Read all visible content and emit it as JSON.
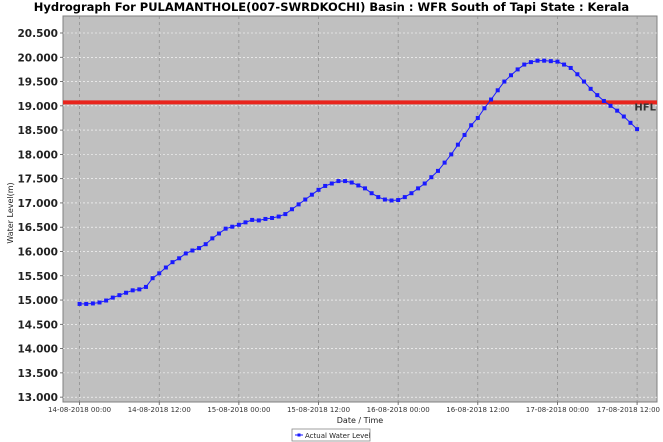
{
  "chart_data": {
    "type": "line",
    "title": "Hydrograph For PULAMANTHOLE(007-SWRDKOCHI) Basin : WFR South of Tapi State : Kerala",
    "xlabel": "Date / Time",
    "ylabel": "Water Level(m)",
    "ylim": [
      12.9,
      20.85
    ],
    "yticks": [
      "13.000",
      "13.500",
      "14.000",
      "14.500",
      "15.000",
      "15.500",
      "16.000",
      "16.500",
      "17.000",
      "17.500",
      "18.000",
      "18.500",
      "19.000",
      "19.500",
      "20.000",
      "20.500"
    ],
    "xticks": [
      "14-08-2018 00:00",
      "14-08-2018 12:00",
      "15-08-2018 00:00",
      "15-08-2018 12:00",
      "16-08-2018 00:00",
      "16-08-2018 12:00",
      "17-08-2018 00:00",
      "17-08-2018 12:00"
    ],
    "xlim_hours": [
      -2.5,
      87.0
    ],
    "grid": true,
    "legend_position": "bottom-center",
    "hfl": {
      "label": "HFL",
      "value": 19.07,
      "color": "#e8241c"
    },
    "series": [
      {
        "name": "Actual Water Level",
        "color": "#1a1aff",
        "x_hours": [
          0,
          1,
          2,
          3,
          4,
          5,
          6,
          7,
          8,
          9,
          10,
          11,
          12,
          13,
          14,
          15,
          16,
          17,
          18,
          19,
          20,
          21,
          22,
          23,
          24,
          25,
          26,
          27,
          28,
          29,
          30,
          31,
          32,
          33,
          34,
          35,
          36,
          37,
          38,
          39,
          40,
          41,
          42,
          43,
          44,
          45,
          46,
          47,
          48,
          49,
          50,
          51,
          52,
          53,
          54,
          55,
          56,
          57,
          58,
          59,
          60,
          61,
          62,
          63,
          64,
          65,
          66,
          67,
          68,
          69,
          70,
          71,
          72,
          73,
          74,
          75,
          76,
          77,
          78,
          79,
          80,
          81,
          82,
          83,
          84
        ],
        "values": [
          14.92,
          14.92,
          14.93,
          14.95,
          14.99,
          15.05,
          15.1,
          15.15,
          15.2,
          15.22,
          15.27,
          15.45,
          15.55,
          15.67,
          15.78,
          15.86,
          15.96,
          16.02,
          16.07,
          16.15,
          16.27,
          16.37,
          16.47,
          16.51,
          16.55,
          16.6,
          16.65,
          16.64,
          16.67,
          16.69,
          16.72,
          16.77,
          16.87,
          16.97,
          17.07,
          17.17,
          17.27,
          17.35,
          17.4,
          17.45,
          17.45,
          17.42,
          17.36,
          17.3,
          17.2,
          17.12,
          17.07,
          17.05,
          17.06,
          17.12,
          17.2,
          17.3,
          17.4,
          17.53,
          17.66,
          17.83,
          18.0,
          18.2,
          18.4,
          18.6,
          18.75,
          18.95,
          19.13,
          19.32,
          19.5,
          19.63,
          19.75,
          19.85,
          19.9,
          19.93,
          19.93,
          19.92,
          19.91,
          19.85,
          19.78,
          19.65,
          19.5,
          19.35,
          19.22,
          19.1,
          19.0,
          18.9,
          18.78,
          18.65,
          18.52
        ]
      }
    ]
  }
}
